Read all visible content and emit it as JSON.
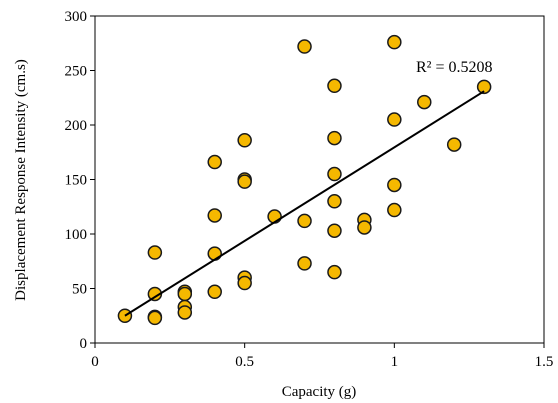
{
  "chart_data": {
    "type": "scatter",
    "xlabel": "Capacity (g)",
    "ylabel": "Displacement  Response  Intensity  (cm.s)",
    "xlim": [
      0,
      1.5
    ],
    "ylim": [
      0,
      300
    ],
    "xticks": [
      0,
      0.5,
      1,
      1.5
    ],
    "xtick_labels": [
      "0",
      "0.5",
      "1",
      "1.5"
    ],
    "yticks": [
      0,
      50,
      100,
      150,
      200,
      250,
      300
    ],
    "ytick_labels": [
      "0",
      "50",
      "100",
      "150",
      "200",
      "250",
      "300"
    ],
    "grid": false,
    "legend": "none",
    "marker_fill": "#f5b800",
    "marker_edge": "#1a1a1a",
    "series": [
      {
        "points": [
          [
            0.1,
            25
          ],
          [
            0.2,
            83
          ],
          [
            0.2,
            45
          ],
          [
            0.2,
            24
          ],
          [
            0.2,
            23
          ],
          [
            0.3,
            47
          ],
          [
            0.3,
            45
          ],
          [
            0.3,
            33
          ],
          [
            0.3,
            28
          ],
          [
            0.4,
            166
          ],
          [
            0.4,
            117
          ],
          [
            0.4,
            82
          ],
          [
            0.4,
            47
          ],
          [
            0.5,
            186
          ],
          [
            0.5,
            150
          ],
          [
            0.5,
            148
          ],
          [
            0.5,
            60
          ],
          [
            0.5,
            55
          ],
          [
            0.6,
            116
          ],
          [
            0.7,
            272
          ],
          [
            0.7,
            112
          ],
          [
            0.7,
            73
          ],
          [
            0.8,
            236
          ],
          [
            0.8,
            188
          ],
          [
            0.8,
            155
          ],
          [
            0.8,
            130
          ],
          [
            0.8,
            103
          ],
          [
            0.8,
            65
          ],
          [
            0.9,
            113
          ],
          [
            0.9,
            106
          ],
          [
            1.0,
            276
          ],
          [
            1.0,
            205
          ],
          [
            1.0,
            145
          ],
          [
            1.0,
            122
          ],
          [
            1.1,
            221
          ],
          [
            1.2,
            182
          ],
          [
            1.3,
            235
          ]
        ]
      }
    ],
    "trendline": {
      "type": "linear",
      "x": [
        0.1,
        1.3
      ],
      "y": [
        25,
        231
      ]
    },
    "annotation": "R² = 0.5208"
  }
}
